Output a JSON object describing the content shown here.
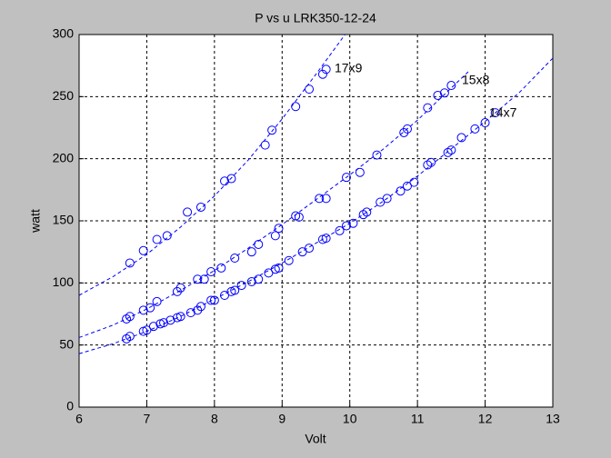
{
  "chart_data": {
    "type": "scatter",
    "title": "P vs u   LRK350-12-24",
    "x_label": "Volt",
    "y_label": "watt",
    "xlim": [
      6,
      13
    ],
    "ylim": [
      0,
      300
    ],
    "xticks": [
      6,
      7,
      8,
      9,
      10,
      11,
      12,
      13
    ],
    "yticks": [
      0,
      50,
      100,
      150,
      200,
      250,
      300
    ],
    "grid": true,
    "series": [
      {
        "name": "17x9",
        "color": "#0000ff",
        "x": [
          6.75,
          6.95,
          7.15,
          7.3,
          7.6,
          7.8,
          8.15,
          8.25,
          8.75,
          8.85,
          9.2,
          9.4,
          9.6,
          9.65
        ],
        "values": [
          116,
          126,
          135,
          138,
          157,
          161,
          182,
          184,
          211,
          223,
          242,
          256,
          268,
          272
        ],
        "fit_x": [
          6,
          6.5,
          7,
          7.5,
          8,
          8.5,
          9,
          9.5,
          9.93
        ],
        "fit_values": [
          90,
          105,
          123,
          145,
          170,
          199,
          232,
          268,
          300
        ]
      },
      {
        "name": "15x8",
        "color": "#0000ff",
        "x": [
          6.7,
          6.75,
          6.95,
          7.05,
          7.15,
          7.45,
          7.5,
          7.75,
          7.85,
          7.95,
          8.1,
          8.3,
          8.55,
          8.65,
          8.9,
          8.95,
          9.2,
          9.25,
          9.55,
          9.65,
          9.95,
          10.15,
          10.4,
          10.8,
          10.85,
          11.15,
          11.3,
          11.4,
          11.5
        ],
        "values": [
          71,
          73,
          78,
          80,
          85,
          93,
          96,
          103,
          103,
          109,
          112,
          120,
          125,
          131,
          138,
          144,
          154,
          153,
          168,
          168,
          185,
          189,
          203,
          221,
          224,
          241,
          251,
          253,
          259
        ],
        "fit_x": [
          6,
          6.5,
          7,
          7.5,
          8,
          8.5,
          9,
          9.5,
          10,
          10.5,
          11,
          11.5,
          11.75
        ],
        "fit_values": [
          56,
          66,
          79,
          94,
          110,
          128,
          147,
          167,
          187,
          208,
          231,
          257,
          270
        ]
      },
      {
        "name": "14x7",
        "color": "#0000ff",
        "x": [
          6.7,
          6.75,
          6.95,
          7.0,
          7.1,
          7.2,
          7.25,
          7.35,
          7.45,
          7.5,
          7.65,
          7.75,
          7.8,
          7.95,
          8.0,
          8.15,
          8.25,
          8.3,
          8.4,
          8.55,
          8.65,
          8.8,
          8.9,
          8.95,
          9.1,
          9.3,
          9.4,
          9.6,
          9.65,
          9.85,
          9.95,
          10.05,
          10.2,
          10.25,
          10.45,
          10.55,
          10.75,
          10.85,
          10.95,
          11.15,
          11.2,
          11.45,
          11.5,
          11.65,
          11.85,
          12.0,
          12.15
        ],
        "values": [
          55,
          57,
          61,
          62,
          65,
          67,
          68,
          70,
          72,
          73,
          76,
          78,
          81,
          86,
          86,
          90,
          93,
          94,
          98,
          101,
          103,
          108,
          111,
          112,
          118,
          125,
          128,
          135,
          136,
          142,
          146,
          148,
          155,
          157,
          165,
          168,
          174,
          178,
          181,
          195,
          197,
          205,
          207,
          217,
          224,
          229,
          237
        ],
        "fit_x": [
          6,
          6.5,
          7,
          7.5,
          8,
          8.5,
          9,
          9.5,
          10,
          10.5,
          11,
          11.5,
          12,
          12.5,
          13
        ],
        "fit_values": [
          43,
          51,
          61,
          73,
          87,
          101,
          116,
          132,
          148,
          166,
          186,
          208,
          230,
          253,
          281
        ]
      }
    ]
  }
}
